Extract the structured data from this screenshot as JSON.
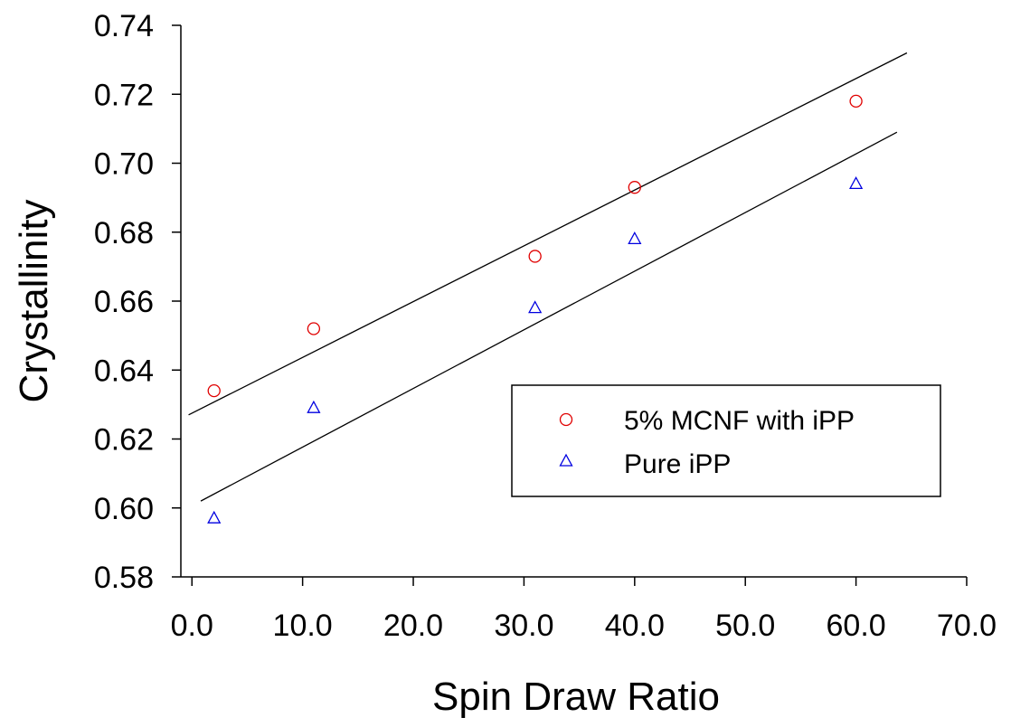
{
  "chart_data": {
    "type": "scatter",
    "title": "",
    "xlabel": "Spin Draw Ratio",
    "ylabel": "Crystallinity",
    "xlim": [
      -1,
      70
    ],
    "ylim": [
      0.58,
      0.74
    ],
    "xticks": [
      "0.0",
      "10.0",
      "20.0",
      "30.0",
      "40.0",
      "50.0",
      "60.0",
      "70.0"
    ],
    "yticks": [
      "0.58",
      "0.60",
      "0.62",
      "0.64",
      "0.66",
      "0.68",
      "0.70",
      "0.72",
      "0.74"
    ],
    "grid": false,
    "legend_position": "lower-right",
    "series": [
      {
        "name": "5% MCNF with iPP",
        "marker": "circle",
        "color": "#e00000",
        "points": [
          {
            "x": 2,
            "y": 0.634
          },
          {
            "x": 11,
            "y": 0.652
          },
          {
            "x": 31,
            "y": 0.673
          },
          {
            "x": 40,
            "y": 0.693
          },
          {
            "x": 60,
            "y": 0.718
          }
        ],
        "fit_line": {
          "x": [
            -0.3,
            64.6
          ],
          "y": [
            0.627,
            0.732
          ],
          "color": "#000000"
        }
      },
      {
        "name": "Pure iPP",
        "marker": "triangle",
        "color": "#0000e0",
        "points": [
          {
            "x": 2,
            "y": 0.597
          },
          {
            "x": 11,
            "y": 0.629
          },
          {
            "x": 31,
            "y": 0.658
          },
          {
            "x": 40,
            "y": 0.678
          },
          {
            "x": 60,
            "y": 0.694
          }
        ],
        "fit_line": {
          "x": [
            0.8,
            63.7
          ],
          "y": [
            0.602,
            0.709
          ],
          "color": "#000000"
        }
      }
    ]
  }
}
